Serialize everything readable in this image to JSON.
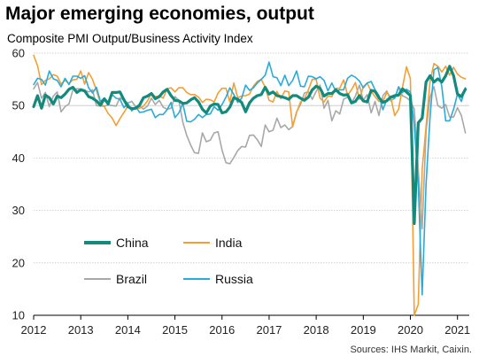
{
  "chart_data": {
    "type": "line",
    "title": "Major emerging economies, output",
    "subtitle": "Composite PMI Output/Business Activity Index",
    "source": "Sources: IHS Markit, Caixin.",
    "ylim": [
      10,
      60
    ],
    "yticks": [
      10,
      20,
      30,
      40,
      50,
      60
    ],
    "xlim": [
      2012.0,
      2021.25
    ],
    "xticks": [
      "2012",
      "2013",
      "2014",
      "2015",
      "2016",
      "2017",
      "2018",
      "2019",
      "2020",
      "2021"
    ],
    "grid": "horizontal",
    "legend_position": "lower-left",
    "series": [
      {
        "name": "China",
        "color": "#128a7c",
        "width": 3.2,
        "x": [
          2012.0,
          2012.083,
          2012.167,
          2012.25,
          2012.333,
          2012.417,
          2012.5,
          2012.583,
          2012.667,
          2012.75,
          2012.833,
          2012.917,
          2013.0,
          2013.083,
          2013.167,
          2013.25,
          2013.333,
          2013.417,
          2013.5,
          2013.583,
          2013.667,
          2013.75,
          2013.833,
          2013.917,
          2014.0,
          2014.083,
          2014.167,
          2014.25,
          2014.333,
          2014.417,
          2014.5,
          2014.583,
          2014.667,
          2014.75,
          2014.833,
          2014.917,
          2015.0,
          2015.083,
          2015.167,
          2015.25,
          2015.333,
          2015.417,
          2015.5,
          2015.583,
          2015.667,
          2015.75,
          2015.833,
          2015.917,
          2016.0,
          2016.083,
          2016.167,
          2016.25,
          2016.333,
          2016.417,
          2016.5,
          2016.583,
          2016.667,
          2016.75,
          2016.833,
          2016.917,
          2017.0,
          2017.083,
          2017.167,
          2017.25,
          2017.333,
          2017.417,
          2017.5,
          2017.583,
          2017.667,
          2017.75,
          2017.833,
          2017.917,
          2018.0,
          2018.083,
          2018.167,
          2018.25,
          2018.333,
          2018.417,
          2018.5,
          2018.583,
          2018.667,
          2018.75,
          2018.833,
          2018.917,
          2019.0,
          2019.083,
          2019.167,
          2019.25,
          2019.333,
          2019.417,
          2019.5,
          2019.583,
          2019.667,
          2019.75,
          2019.833,
          2019.917,
          2020.0,
          2020.083,
          2020.167,
          2020.25,
          2020.333,
          2020.417,
          2020.5,
          2020.583,
          2020.667,
          2020.75,
          2020.833,
          2020.917,
          2021.0,
          2021.083,
          2021.167
        ],
        "values": [
          49.8,
          51.9,
          49.5,
          52.0,
          51.5,
          50.3,
          51.8,
          51.5,
          52.2,
          53.1,
          53.5,
          52.5,
          53.0,
          52.8,
          51.7,
          51.4,
          50.9,
          50.1,
          51.3,
          50.3,
          52.5,
          52.5,
          52.6,
          51.1,
          49.8,
          49.4,
          49.5,
          50.1,
          51.5,
          51.8,
          52.3,
          51.3,
          51.7,
          52.6,
          53.1,
          51.9,
          51.0,
          50.9,
          50.4,
          50.5,
          51.1,
          51.5,
          50.7,
          49.3,
          48.6,
          49.9,
          50.3,
          50.2,
          48.6,
          48.8,
          49.7,
          51.5,
          51.2,
          50.6,
          48.8,
          50.5,
          51.4,
          51.9,
          52.1,
          53.5,
          52.2,
          52.6,
          51.9,
          51.7,
          51.5,
          51.2,
          51.9,
          51.9,
          51.4,
          51.0,
          51.6,
          53.0,
          53.7,
          53.3,
          51.8,
          52.3,
          52.3,
          53.0,
          52.3,
          52.0,
          52.1,
          50.5,
          50.8,
          51.9,
          50.9,
          50.7,
          52.9,
          52.7,
          51.5,
          50.6,
          50.9,
          51.6,
          51.9,
          52.0,
          53.2,
          52.6,
          51.9,
          27.5,
          46.7,
          47.6,
          54.5,
          55.7,
          54.5,
          55.1,
          54.5,
          55.7,
          57.5,
          55.7,
          52.2,
          51.7,
          53.1
        ]
      },
      {
        "name": "India",
        "color": "#f39f35",
        "width": 1.6,
        "x": [
          2012.0,
          2012.083,
          2012.167,
          2012.25,
          2012.333,
          2012.417,
          2012.5,
          2012.583,
          2012.667,
          2012.75,
          2012.833,
          2012.917,
          2013.0,
          2013.083,
          2013.167,
          2013.25,
          2013.333,
          2013.417,
          2013.5,
          2013.583,
          2013.667,
          2013.75,
          2013.833,
          2013.917,
          2014.0,
          2014.083,
          2014.167,
          2014.25,
          2014.333,
          2014.417,
          2014.5,
          2014.583,
          2014.667,
          2014.75,
          2014.833,
          2014.917,
          2015.0,
          2015.083,
          2015.167,
          2015.25,
          2015.333,
          2015.417,
          2015.5,
          2015.583,
          2015.667,
          2015.75,
          2015.833,
          2015.917,
          2016.0,
          2016.083,
          2016.167,
          2016.25,
          2016.333,
          2016.417,
          2016.5,
          2016.583,
          2016.667,
          2016.75,
          2016.833,
          2016.917,
          2017.0,
          2017.083,
          2017.167,
          2017.25,
          2017.333,
          2017.417,
          2017.5,
          2017.583,
          2017.667,
          2017.75,
          2017.833,
          2017.917,
          2018.0,
          2018.083,
          2018.167,
          2018.25,
          2018.333,
          2018.417,
          2018.5,
          2018.583,
          2018.667,
          2018.75,
          2018.833,
          2018.917,
          2019.0,
          2019.083,
          2019.167,
          2019.25,
          2019.333,
          2019.417,
          2019.5,
          2019.583,
          2019.667,
          2019.75,
          2019.833,
          2019.917,
          2020.0,
          2020.083,
          2020.167,
          2020.25,
          2020.333,
          2020.417,
          2020.5,
          2020.583,
          2020.667,
          2020.75,
          2020.833,
          2020.917,
          2021.0,
          2021.083,
          2021.167
        ],
        "values": [
          59.6,
          57.6,
          54.0,
          54.8,
          55.1,
          55.9,
          55.6,
          54.1,
          54.8,
          54.2,
          54.9,
          55.0,
          56.6,
          54.1,
          56.3,
          55.0,
          52.9,
          50.5,
          49.8,
          48.5,
          47.6,
          46.2,
          47.5,
          48.7,
          49.9,
          49.5,
          49.6,
          49.5,
          49.9,
          50.9,
          52.3,
          51.7,
          51.9,
          51.4,
          53.2,
          53.4,
          52.6,
          53.4,
          53.4,
          52.5,
          52.1,
          52.1,
          51.6,
          50.6,
          51.2,
          51.1,
          50.7,
          52.4,
          53.3,
          53.3,
          50.7,
          54.3,
          51.5,
          51.8,
          51.9,
          52.2,
          53.7,
          54.6,
          55.0,
          53.5,
          51.0,
          50.7,
          52.7,
          51.3,
          52.8,
          52.6,
          46.0,
          48.7,
          50.7,
          51.3,
          53.0,
          55.0,
          55.0,
          51.4,
          50.7,
          51.8,
          51.7,
          53.3,
          53.3,
          54.9,
          52.0,
          53.0,
          54.4,
          51.2,
          53.6,
          54.3,
          52.7,
          51.7,
          50.8,
          50.8,
          52.5,
          51.6,
          48.1,
          49.3,
          53.5,
          57.4,
          55.1,
          10.0,
          12.1,
          37.8,
          46.0,
          54.6,
          58.0,
          57.5,
          56.4,
          57.5,
          55.8,
          57.3,
          56.0,
          55.4,
          55.1
        ]
      },
      {
        "name": "Brazil",
        "color": "#a8a8a8",
        "width": 1.6,
        "x": [
          2012.0,
          2012.083,
          2012.167,
          2012.25,
          2012.333,
          2012.417,
          2012.5,
          2012.583,
          2012.667,
          2012.75,
          2012.833,
          2012.917,
          2013.0,
          2013.083,
          2013.167,
          2013.25,
          2013.333,
          2013.417,
          2013.5,
          2013.583,
          2013.667,
          2013.75,
          2013.833,
          2013.917,
          2014.0,
          2014.083,
          2014.167,
          2014.25,
          2014.333,
          2014.417,
          2014.5,
          2014.583,
          2014.667,
          2014.75,
          2014.833,
          2014.917,
          2015.0,
          2015.083,
          2015.167,
          2015.25,
          2015.333,
          2015.417,
          2015.5,
          2015.583,
          2015.667,
          2015.75,
          2015.833,
          2015.917,
          2016.0,
          2016.083,
          2016.167,
          2016.25,
          2016.333,
          2016.417,
          2016.5,
          2016.583,
          2016.667,
          2016.75,
          2016.833,
          2016.917,
          2017.0,
          2017.083,
          2017.167,
          2017.25,
          2017.333,
          2017.417,
          2017.5,
          2017.583,
          2017.667,
          2017.75,
          2017.833,
          2017.917,
          2018.0,
          2018.083,
          2018.167,
          2018.25,
          2018.333,
          2018.417,
          2018.5,
          2018.583,
          2018.667,
          2018.75,
          2018.833,
          2018.917,
          2019.0,
          2019.083,
          2019.167,
          2019.25,
          2019.333,
          2019.417,
          2019.5,
          2019.583,
          2019.667,
          2019.75,
          2019.833,
          2019.917,
          2020.0,
          2020.083,
          2020.167,
          2020.25,
          2020.333,
          2020.417,
          2020.5,
          2020.583,
          2020.667,
          2020.75,
          2020.833,
          2020.917,
          2021.0,
          2021.083,
          2021.167
        ],
        "values": [
          53.2,
          54.4,
          51.4,
          52.5,
          49.8,
          51.8,
          52.6,
          48.8,
          49.8,
          50.3,
          53.0,
          53.2,
          53.2,
          52.9,
          52.6,
          53.0,
          50.0,
          49.9,
          49.9,
          50.1,
          50.0,
          49.9,
          51.5,
          51.0,
          50.5,
          50.8,
          49.8,
          49.9,
          49.3,
          49.9,
          51.4,
          50.2,
          51.0,
          49.7,
          49.3,
          49.5,
          51.7,
          51.0,
          46.8,
          44.3,
          42.5,
          41.0,
          40.9,
          44.8,
          43.1,
          43.4,
          44.8,
          45.0,
          41.5,
          39.1,
          38.9,
          40.1,
          41.4,
          42.2,
          42.1,
          44.3,
          44.4,
          43.5,
          42.2,
          46.3,
          45.0,
          45.3,
          47.6,
          45.8,
          46.3,
          45.4,
          46.0,
          48.8,
          50.2,
          52.4,
          52.6,
          51.2,
          52.7,
          53.9,
          49.5,
          51.0,
          47.1,
          49.0,
          48.4,
          51.2,
          51.6,
          50.5,
          51.8,
          53.9,
          51.0,
          52.1,
          48.6,
          50.8,
          48.1,
          51.9,
          52.8,
          50.9,
          51.4,
          53.4,
          51.9,
          51.5,
          50.9,
          49.3,
          37.9,
          26.5,
          45.1,
          51.6,
          53.6,
          50.0,
          49.5,
          50.2,
          47.8,
          47.8,
          49.6,
          48.1,
          44.8
        ]
      },
      {
        "name": "Russia",
        "color": "#29abda",
        "width": 1.6,
        "x": [
          2012.0,
          2012.083,
          2012.167,
          2012.25,
          2012.333,
          2012.417,
          2012.5,
          2012.583,
          2012.667,
          2012.75,
          2012.833,
          2012.917,
          2013.0,
          2013.083,
          2013.167,
          2013.25,
          2013.333,
          2013.417,
          2013.5,
          2013.583,
          2013.667,
          2013.75,
          2013.833,
          2013.917,
          2014.0,
          2014.083,
          2014.167,
          2014.25,
          2014.333,
          2014.417,
          2014.5,
          2014.583,
          2014.667,
          2014.75,
          2014.833,
          2014.917,
          2015.0,
          2015.083,
          2015.167,
          2015.25,
          2015.333,
          2015.417,
          2015.5,
          2015.583,
          2015.667,
          2015.75,
          2015.833,
          2015.917,
          2016.0,
          2016.083,
          2016.167,
          2016.25,
          2016.333,
          2016.417,
          2016.5,
          2016.583,
          2016.667,
          2016.75,
          2016.833,
          2016.917,
          2017.0,
          2017.083,
          2017.167,
          2017.25,
          2017.333,
          2017.417,
          2017.5,
          2017.583,
          2017.667,
          2017.75,
          2017.833,
          2017.917,
          2018.0,
          2018.083,
          2018.167,
          2018.25,
          2018.333,
          2018.417,
          2018.5,
          2018.583,
          2018.667,
          2018.75,
          2018.833,
          2018.917,
          2019.0,
          2019.083,
          2019.167,
          2019.25,
          2019.333,
          2019.417,
          2019.5,
          2019.583,
          2019.667,
          2019.75,
          2019.833,
          2019.917,
          2020.0,
          2020.083,
          2020.167,
          2020.25,
          2020.333,
          2020.417,
          2020.5,
          2020.583,
          2020.667,
          2020.75,
          2020.833,
          2020.917,
          2021.0,
          2021.083,
          2021.167
        ],
        "values": [
          54.0,
          55.2,
          55.0,
          53.9,
          56.6,
          55.1,
          54.8,
          53.6,
          55.2,
          54.0,
          55.6,
          55.6,
          55.2,
          55.7,
          53.4,
          52.4,
          53.5,
          50.8,
          51.4,
          50.7,
          52.1,
          51.4,
          51.2,
          49.6,
          50.4,
          49.0,
          49.8,
          48.7,
          48.8,
          49.1,
          49.3,
          47.7,
          48.3,
          48.3,
          49.2,
          50.6,
          47.7,
          48.6,
          50.4,
          47.0,
          46.9,
          47.4,
          48.3,
          47.7,
          48.3,
          48.4,
          49.8,
          49.1,
          50.2,
          51.6,
          53.4,
          52.1,
          50.6,
          51.4,
          53.9,
          52.9,
          53.4,
          54.3,
          55.0,
          55.8,
          58.3,
          55.5,
          55.3,
          53.8,
          55.8,
          53.8,
          54.8,
          56.6,
          53.7,
          53.6,
          55.6,
          55.5,
          55.1,
          55.5,
          54.8,
          52.8,
          54.3,
          52.7,
          53.0,
          53.0,
          55.2,
          55.8,
          55.4,
          54.7,
          53.4,
          54.3,
          54.6,
          53.0,
          51.9,
          49.2,
          51.2,
          51.6,
          51.4,
          53.6,
          52.5,
          53.1,
          52.6,
          46.2,
          35.0,
          13.9,
          35.0,
          47.8,
          56.8,
          57.3,
          53.6,
          47.1,
          47.1,
          49.3,
          52.2,
          50.8,
          53.4
        ]
      }
    ]
  }
}
